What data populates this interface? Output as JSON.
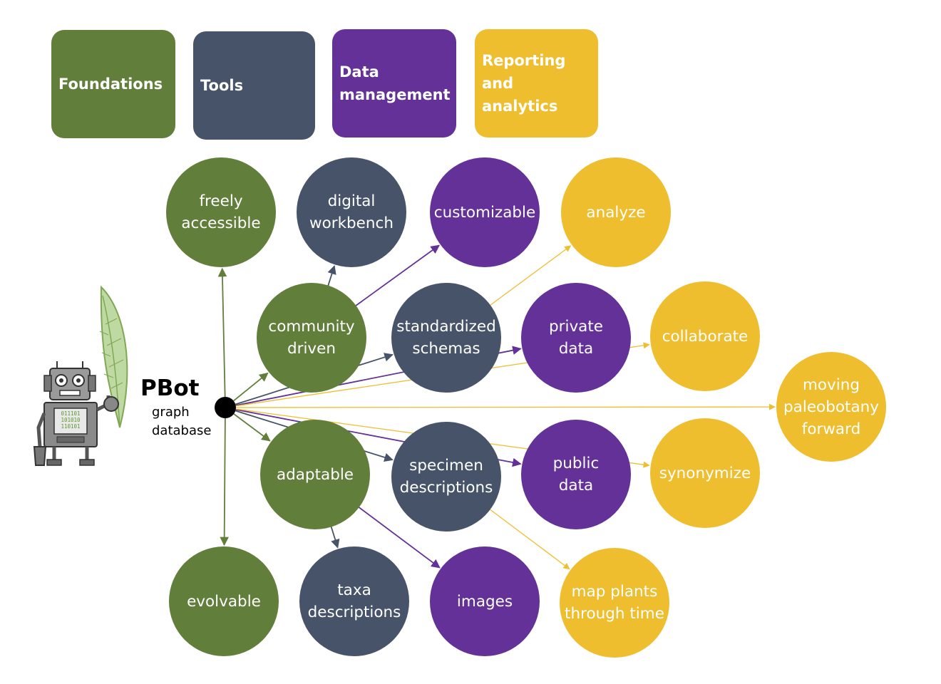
{
  "colors": {
    "foundations": "#617E3B",
    "tools": "#465368",
    "data_management": "#633198",
    "reporting": "#EEBE2E",
    "leaf": "#8BB25E",
    "hub": "#000000"
  },
  "legend": [
    {
      "id": "foundations",
      "label": "Foundations",
      "category": "foundations"
    },
    {
      "id": "tools",
      "label": "Tools",
      "category": "tools"
    },
    {
      "id": "data-management",
      "label": "Data\nmanagement",
      "category": "data_management"
    },
    {
      "id": "reporting",
      "label": "Reporting\nand analytics",
      "category": "reporting"
    }
  ],
  "robot": {
    "name": "PBot",
    "subtitle_line1": "graph",
    "subtitle_line2": "database",
    "icon": "robot-holding-leaf",
    "screen_text": [
      "011101",
      "101010",
      "110101"
    ]
  },
  "nodes": [
    {
      "id": "freely-accessible",
      "label": "freely\naccessible",
      "category": "foundations"
    },
    {
      "id": "digital-workbench",
      "label": "digital\nworkbench",
      "category": "tools"
    },
    {
      "id": "customizable",
      "label": "customizable",
      "category": "data_management"
    },
    {
      "id": "analyze",
      "label": "analyze",
      "category": "reporting"
    },
    {
      "id": "community-driven",
      "label": "community\ndriven",
      "category": "foundations"
    },
    {
      "id": "standardized-schemas",
      "label": "standardized\nschemas",
      "category": "tools"
    },
    {
      "id": "private-data",
      "label": "private\ndata",
      "category": "data_management"
    },
    {
      "id": "collaborate",
      "label": "collaborate",
      "category": "reporting"
    },
    {
      "id": "moving-paleobotany-forward",
      "label": "moving\npaleobotany\nforward",
      "category": "reporting"
    },
    {
      "id": "adaptable",
      "label": "adaptable",
      "category": "foundations"
    },
    {
      "id": "specimen-descriptions",
      "label": "specimen\ndescriptions",
      "category": "tools"
    },
    {
      "id": "public-data",
      "label": "public\ndata",
      "category": "data_management"
    },
    {
      "id": "synonymize",
      "label": "synonymize",
      "category": "reporting"
    },
    {
      "id": "evolvable",
      "label": "evolvable",
      "category": "foundations"
    },
    {
      "id": "taxa-descriptions",
      "label": "taxa\ndescriptions",
      "category": "tools"
    },
    {
      "id": "images",
      "label": "images",
      "category": "data_management"
    },
    {
      "id": "map-plants",
      "label": "map plants\nthrough time",
      "category": "reporting"
    }
  ],
  "edges": [
    {
      "from": "hub",
      "to": "freely-accessible",
      "category": "foundations"
    },
    {
      "from": "hub",
      "to": "evolvable",
      "category": "foundations"
    },
    {
      "from": "hub",
      "to": "community-driven",
      "category": "foundations"
    },
    {
      "from": "hub",
      "to": "adaptable",
      "category": "foundations"
    },
    {
      "from": "hub",
      "to": "standardized-schemas",
      "category": "tools"
    },
    {
      "from": "hub",
      "to": "specimen-descriptions",
      "category": "tools"
    },
    {
      "from": "hub",
      "to": "private-data",
      "category": "data_management"
    },
    {
      "from": "hub",
      "to": "public-data",
      "category": "data_management"
    },
    {
      "from": "hub",
      "to": "collaborate",
      "category": "reporting"
    },
    {
      "from": "hub",
      "to": "synonymize",
      "category": "reporting"
    },
    {
      "from": "hub",
      "to": "moving-paleobotany-forward",
      "category": "reporting"
    },
    {
      "from": "community-driven",
      "to": "digital-workbench",
      "category": "tools"
    },
    {
      "from": "community-driven",
      "to": "customizable",
      "category": "data_management"
    },
    {
      "from": "standardized-schemas",
      "to": "analyze",
      "category": "reporting"
    },
    {
      "from": "adaptable",
      "to": "taxa-descriptions",
      "category": "tools"
    },
    {
      "from": "adaptable",
      "to": "images",
      "category": "data_management"
    },
    {
      "from": "specimen-descriptions",
      "to": "map-plants",
      "category": "reporting"
    }
  ]
}
